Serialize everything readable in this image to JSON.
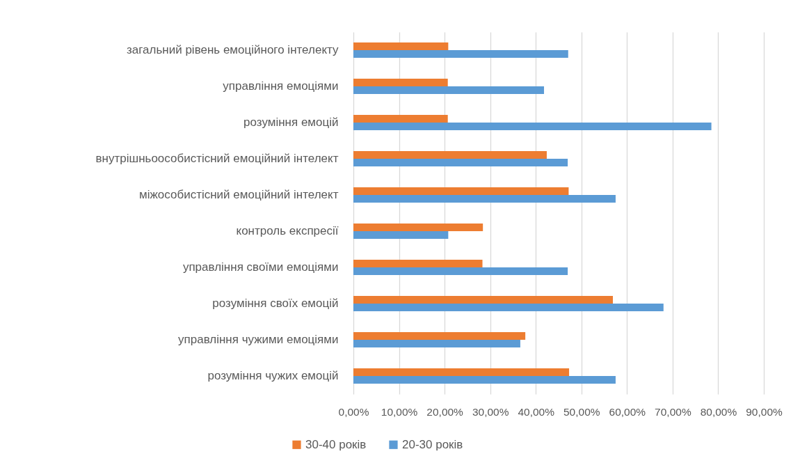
{
  "chart_data": {
    "type": "bar",
    "orientation": "horizontal",
    "categories": [
      "загальний рівень емоційного інтелекту",
      "управління емоціями",
      "розуміння емоцій",
      "внутрішньоособистісний емоційний інтелект",
      "міжособистісний емоційний інтелект",
      "контроль експресії",
      "управління своїми емоціями",
      "розуміння своїх емоцій",
      "управління чужими емоціями",
      "розуміння чужих емоцій"
    ],
    "series": [
      {
        "name": "30-40 років",
        "color": "#ed7d31",
        "values": [
          20.8,
          20.7,
          20.7,
          42.4,
          47.2,
          28.4,
          28.3,
          56.9,
          37.7,
          47.3
        ]
      },
      {
        "name": "20-30 років",
        "color": "#5b9bd5",
        "values": [
          47.1,
          41.8,
          78.5,
          47.0,
          57.5,
          20.8,
          47.0,
          68.0,
          36.6,
          57.5
        ]
      }
    ],
    "xlim": [
      0,
      90
    ],
    "xticks": [
      {
        "value": 0,
        "label": "0,00%"
      },
      {
        "value": 10,
        "label": "10,00%"
      },
      {
        "value": 20,
        "label": "20,00%"
      },
      {
        "value": 30,
        "label": "30,00%"
      },
      {
        "value": 40,
        "label": "40,00%"
      },
      {
        "value": 50,
        "label": "50,00%"
      },
      {
        "value": 60,
        "label": "60,00%"
      },
      {
        "value": 70,
        "label": "70,00%"
      },
      {
        "value": 80,
        "label": "80,00%"
      },
      {
        "value": 90,
        "label": "90,00%"
      }
    ],
    "grid": "x",
    "legend": "bottom"
  }
}
